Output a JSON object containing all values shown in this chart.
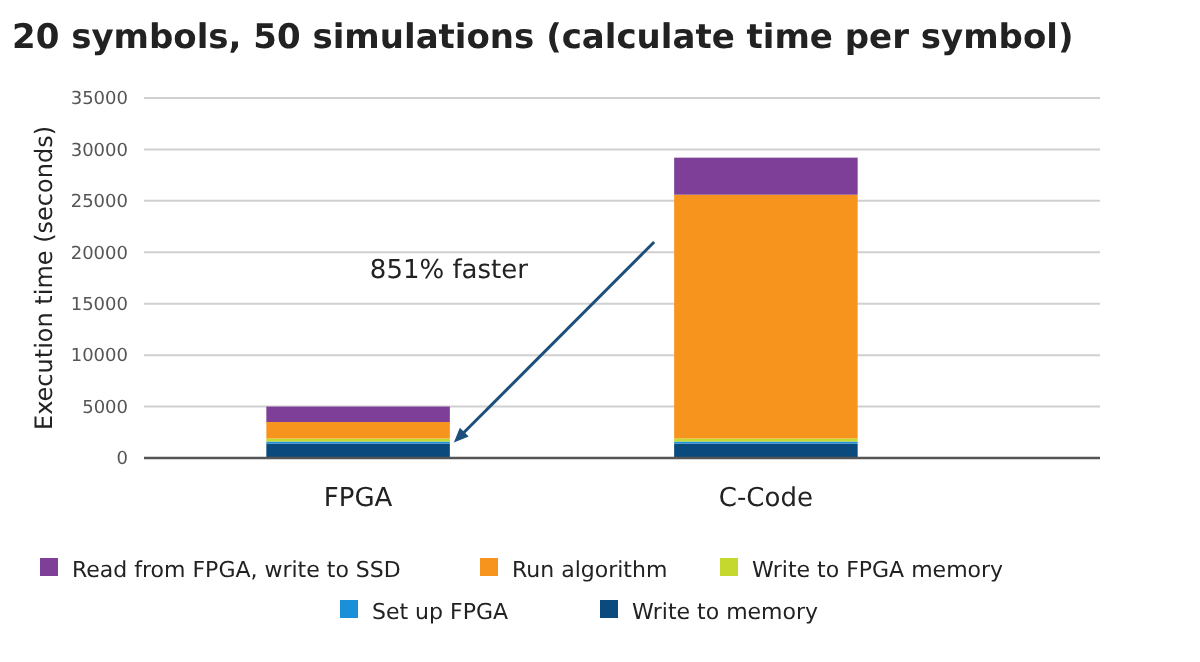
{
  "chart_data": {
    "type": "bar",
    "title": "20 symbols, 50 simulations (calculate time per symbol)",
    "ylabel": "Execution time (seconds)",
    "categories": [
      "FPGA",
      "C-Code"
    ],
    "stacked": true,
    "series": [
      {
        "name": "Write to memory",
        "color": "#0b4a7d",
        "values": [
          1400,
          1400
        ]
      },
      {
        "name": "Set up FPGA",
        "color": "#1b8fd8",
        "values": [
          200,
          200
        ]
      },
      {
        "name": "Write to FPGA memory",
        "color": "#c5d82e",
        "values": [
          300,
          300
        ]
      },
      {
        "name": "Run algorithm",
        "color": "#f7941d",
        "values": [
          1600,
          23700
        ]
      },
      {
        "name": "Read from FPGA, write to SSD",
        "color": "#7d3f98",
        "values": [
          1500,
          3600
        ]
      }
    ],
    "ylim": [
      0,
      35000
    ],
    "yticks": [
      0,
      5000,
      10000,
      15000,
      20000,
      25000,
      30000,
      35000
    ],
    "grid": "y",
    "legend": "bottom",
    "annotations": [
      "851% faster"
    ]
  }
}
